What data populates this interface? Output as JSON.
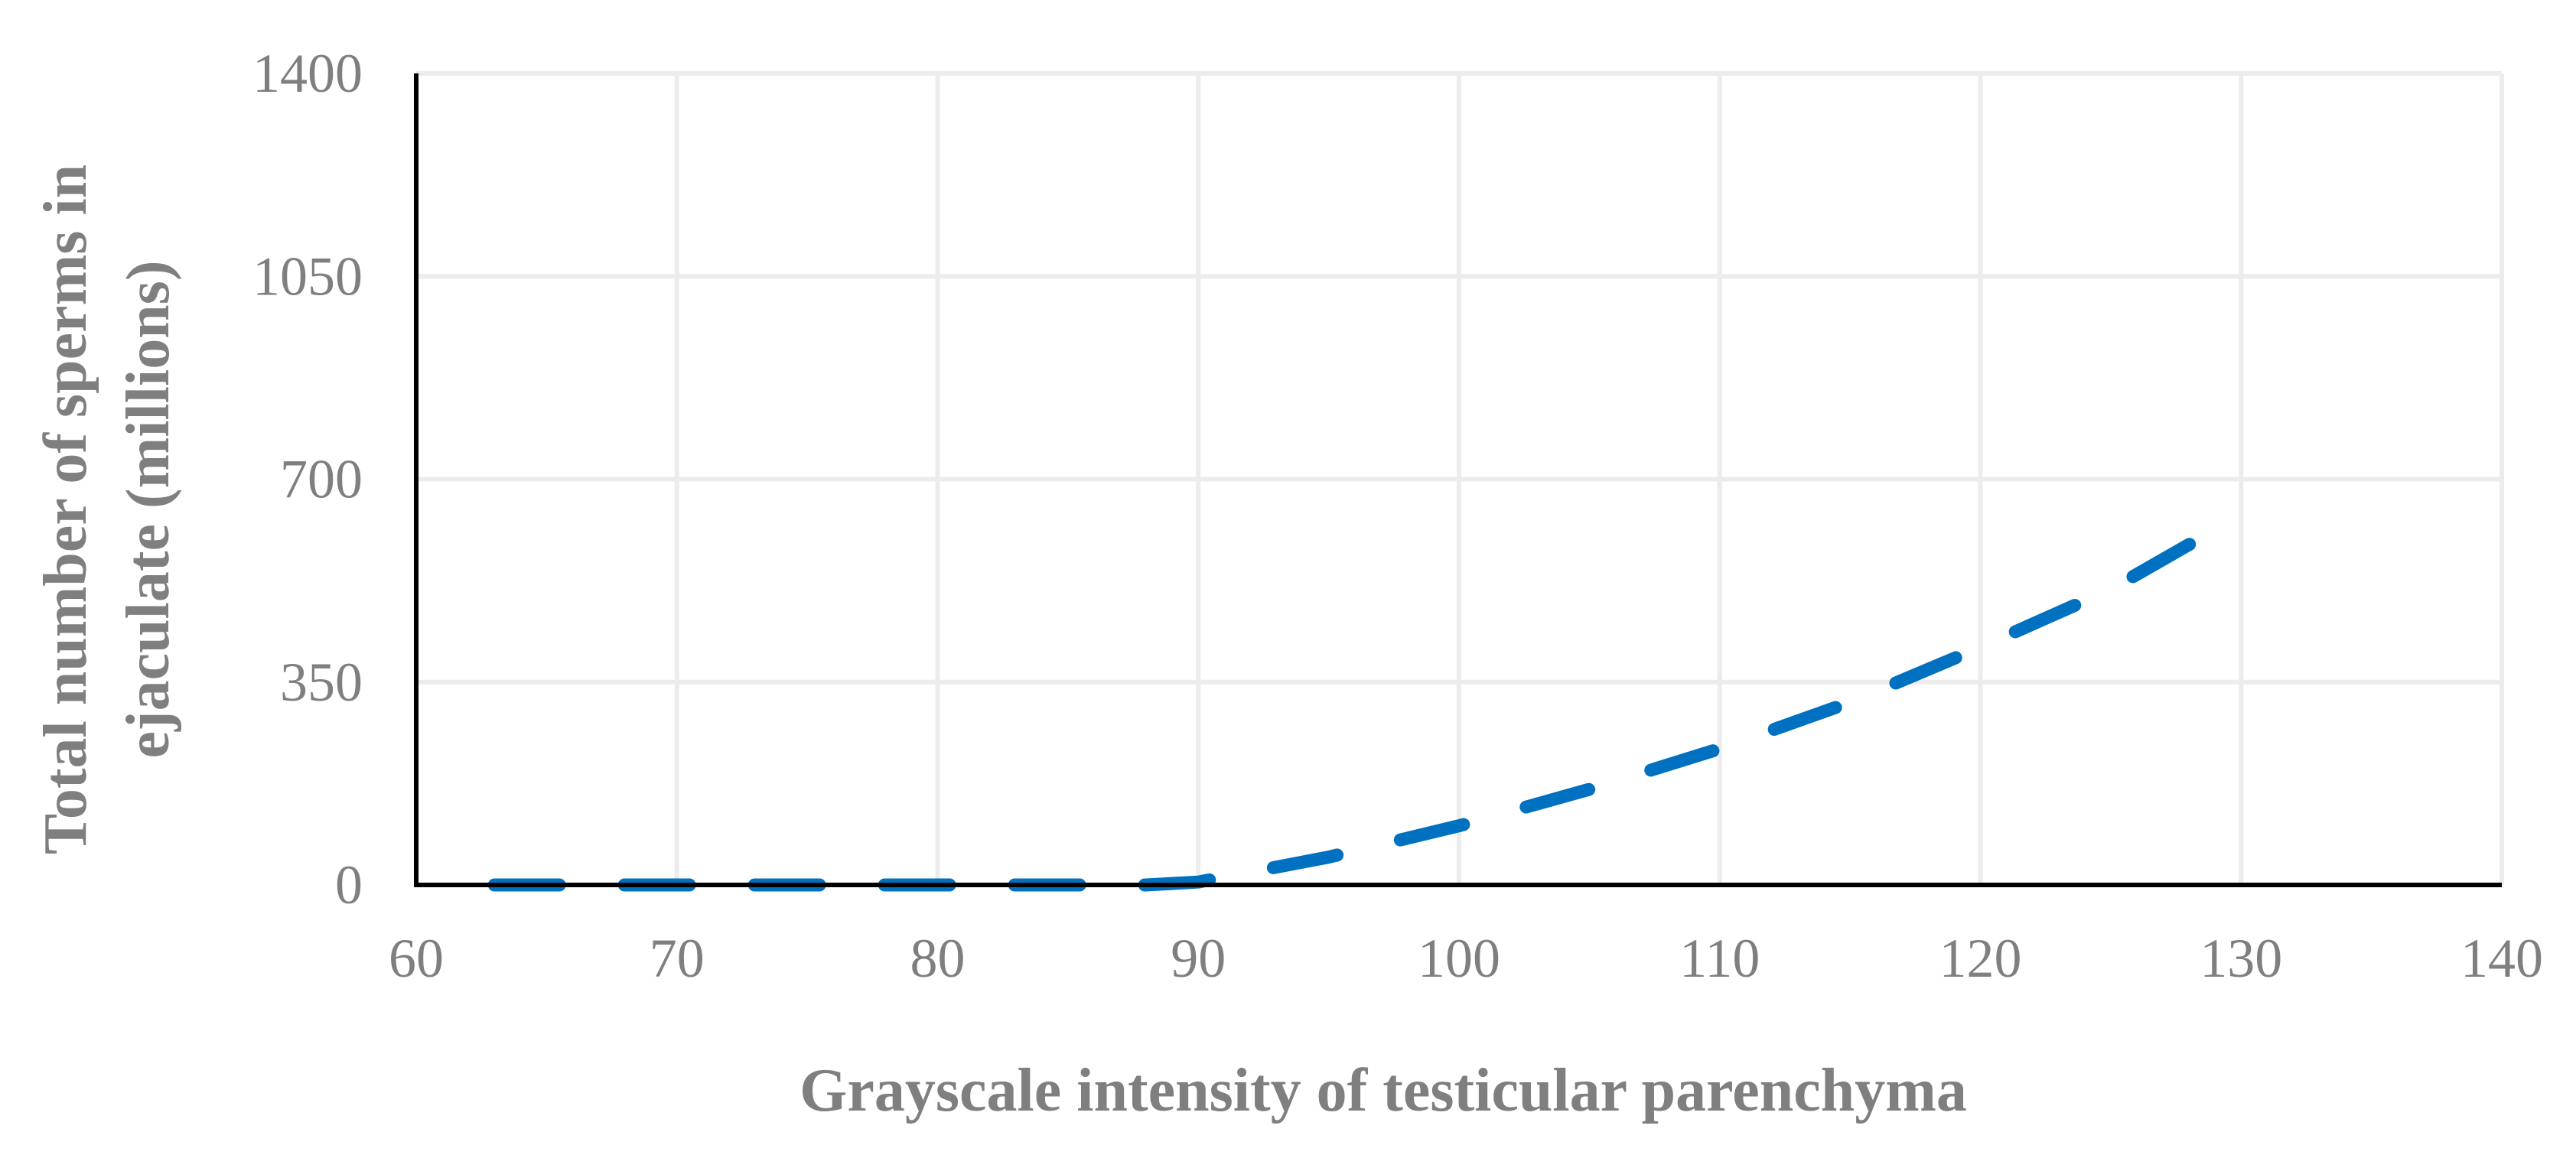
{
  "chart_data": {
    "type": "line",
    "xlabel": "Grayscale intensity of testicular parenchyma",
    "ylabel_lines": [
      "Total number of sperms in",
      "ejaculate (millions)"
    ],
    "xlim": [
      60,
      140
    ],
    "ylim": [
      0,
      1400
    ],
    "xticks": [
      "60",
      "70",
      "80",
      "90",
      "100",
      "110",
      "120",
      "130",
      "140"
    ],
    "yticks": [
      "0",
      "350",
      "700",
      "1050",
      "1400"
    ],
    "grid": true,
    "series": [
      {
        "style": "dashed",
        "color": "#0070c0",
        "x": [
          63,
          88,
          90,
          95,
          100,
          105,
          110,
          115,
          120,
          125,
          128.5
        ],
        "y": [
          0,
          0,
          5,
          48,
          102,
          165,
          235,
          315,
          410,
          510,
          600
        ]
      }
    ]
  }
}
